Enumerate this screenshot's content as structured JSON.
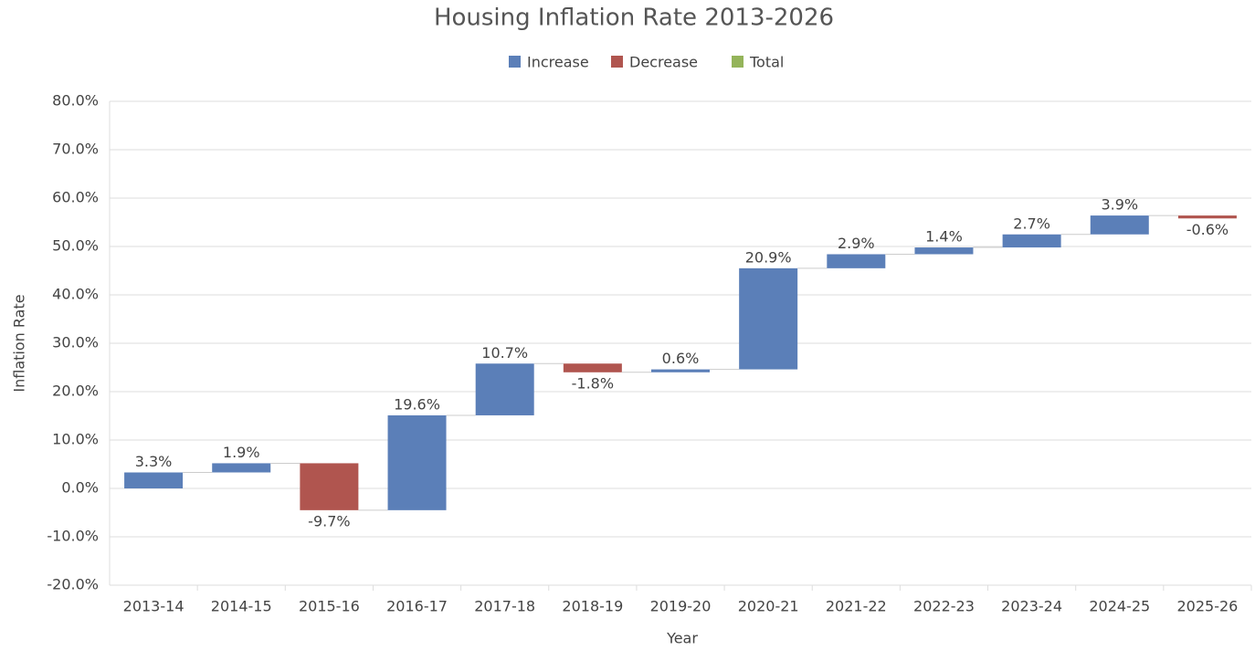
{
  "chart_data": {
    "type": "waterfall",
    "title": "Housing Inflation Rate 2013-2026",
    "xlabel": "Year",
    "ylabel": "Inflation Rate",
    "legend": [
      {
        "name": "Increase",
        "color": "#5b7fb8"
      },
      {
        "name": "Decrease",
        "color": "#b0554f"
      },
      {
        "name": "Total",
        "color": "#94b45a"
      }
    ],
    "categories": [
      "2013-14",
      "2014-15",
      "2015-16",
      "2016-17",
      "2017-18",
      "2018-19",
      "2019-20",
      "2020-21",
      "2021-22",
      "2022-23",
      "2023-24",
      "2024-25",
      "2025-26"
    ],
    "values": [
      3.3,
      1.9,
      -9.7,
      19.6,
      10.7,
      -1.8,
      0.6,
      20.9,
      2.9,
      1.4,
      2.7,
      3.9,
      -0.6
    ],
    "value_labels": [
      "3.3%",
      "1.9%",
      "-9.7%",
      "19.6%",
      "10.7%",
      "-1.8%",
      "0.6%",
      "20.9%",
      "2.9%",
      "1.4%",
      "2.7%",
      "3.9%",
      "-0.6%"
    ],
    "ylim": [
      -20,
      80
    ],
    "yticks": [
      {
        "value": -20,
        "label": "-20.0%"
      },
      {
        "value": -10,
        "label": "-10.0%"
      },
      {
        "value": 0,
        "label": "0.0%"
      },
      {
        "value": 10,
        "label": "10.0%"
      },
      {
        "value": 20,
        "label": "20.0%"
      },
      {
        "value": 30,
        "label": "30.0%"
      },
      {
        "value": 40,
        "label": "40.0%"
      },
      {
        "value": 50,
        "label": "50.0%"
      },
      {
        "value": 60,
        "label": "60.0%"
      },
      {
        "value": 70,
        "label": "70.0%"
      },
      {
        "value": 80,
        "label": "80.0%"
      }
    ],
    "grid": true
  }
}
